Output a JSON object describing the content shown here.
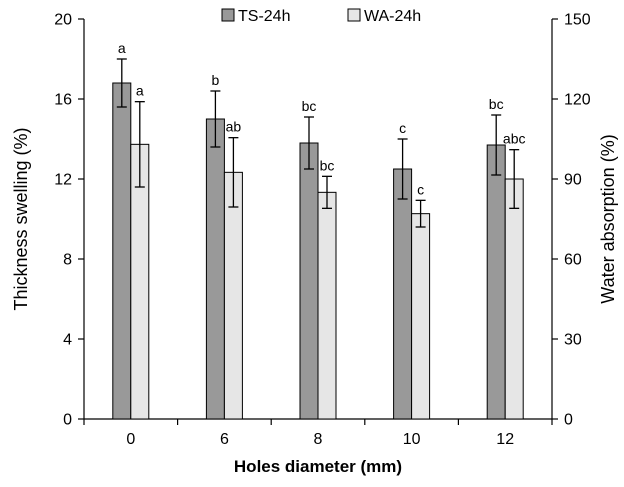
{
  "chart_data": {
    "type": "bar",
    "xlabel": "Holes diameter (mm)",
    "ylabel_left": "Thickness swelling (%)",
    "ylabel_right": "Water absorption (%)",
    "categories": [
      "0",
      "6",
      "8",
      "10",
      "12"
    ],
    "ylim_left": [
      0,
      20
    ],
    "ylim_right": [
      0,
      150
    ],
    "yticks_left": [
      0,
      4,
      8,
      12,
      16,
      20
    ],
    "yticks_right": [
      0,
      30,
      60,
      90,
      120,
      150
    ],
    "grid": false,
    "legend_position": "top-center",
    "series": [
      {
        "name": "TS-24h",
        "axis": "left",
        "color": "#999999",
        "values": [
          16.8,
          15.0,
          13.8,
          12.5,
          13.7
        ],
        "errors": [
          1.2,
          1.4,
          1.3,
          1.5,
          1.5
        ],
        "labels": [
          "a",
          "b",
          "bc",
          "c",
          "bc"
        ]
      },
      {
        "name": "WA-24h",
        "axis": "right",
        "color": "#e6e6e6",
        "values": [
          103,
          92.5,
          85,
          77,
          90
        ],
        "errors": [
          16,
          13,
          6,
          5,
          11
        ],
        "labels": [
          "a",
          "ab",
          "bc",
          "c",
          "abc"
        ]
      }
    ]
  }
}
